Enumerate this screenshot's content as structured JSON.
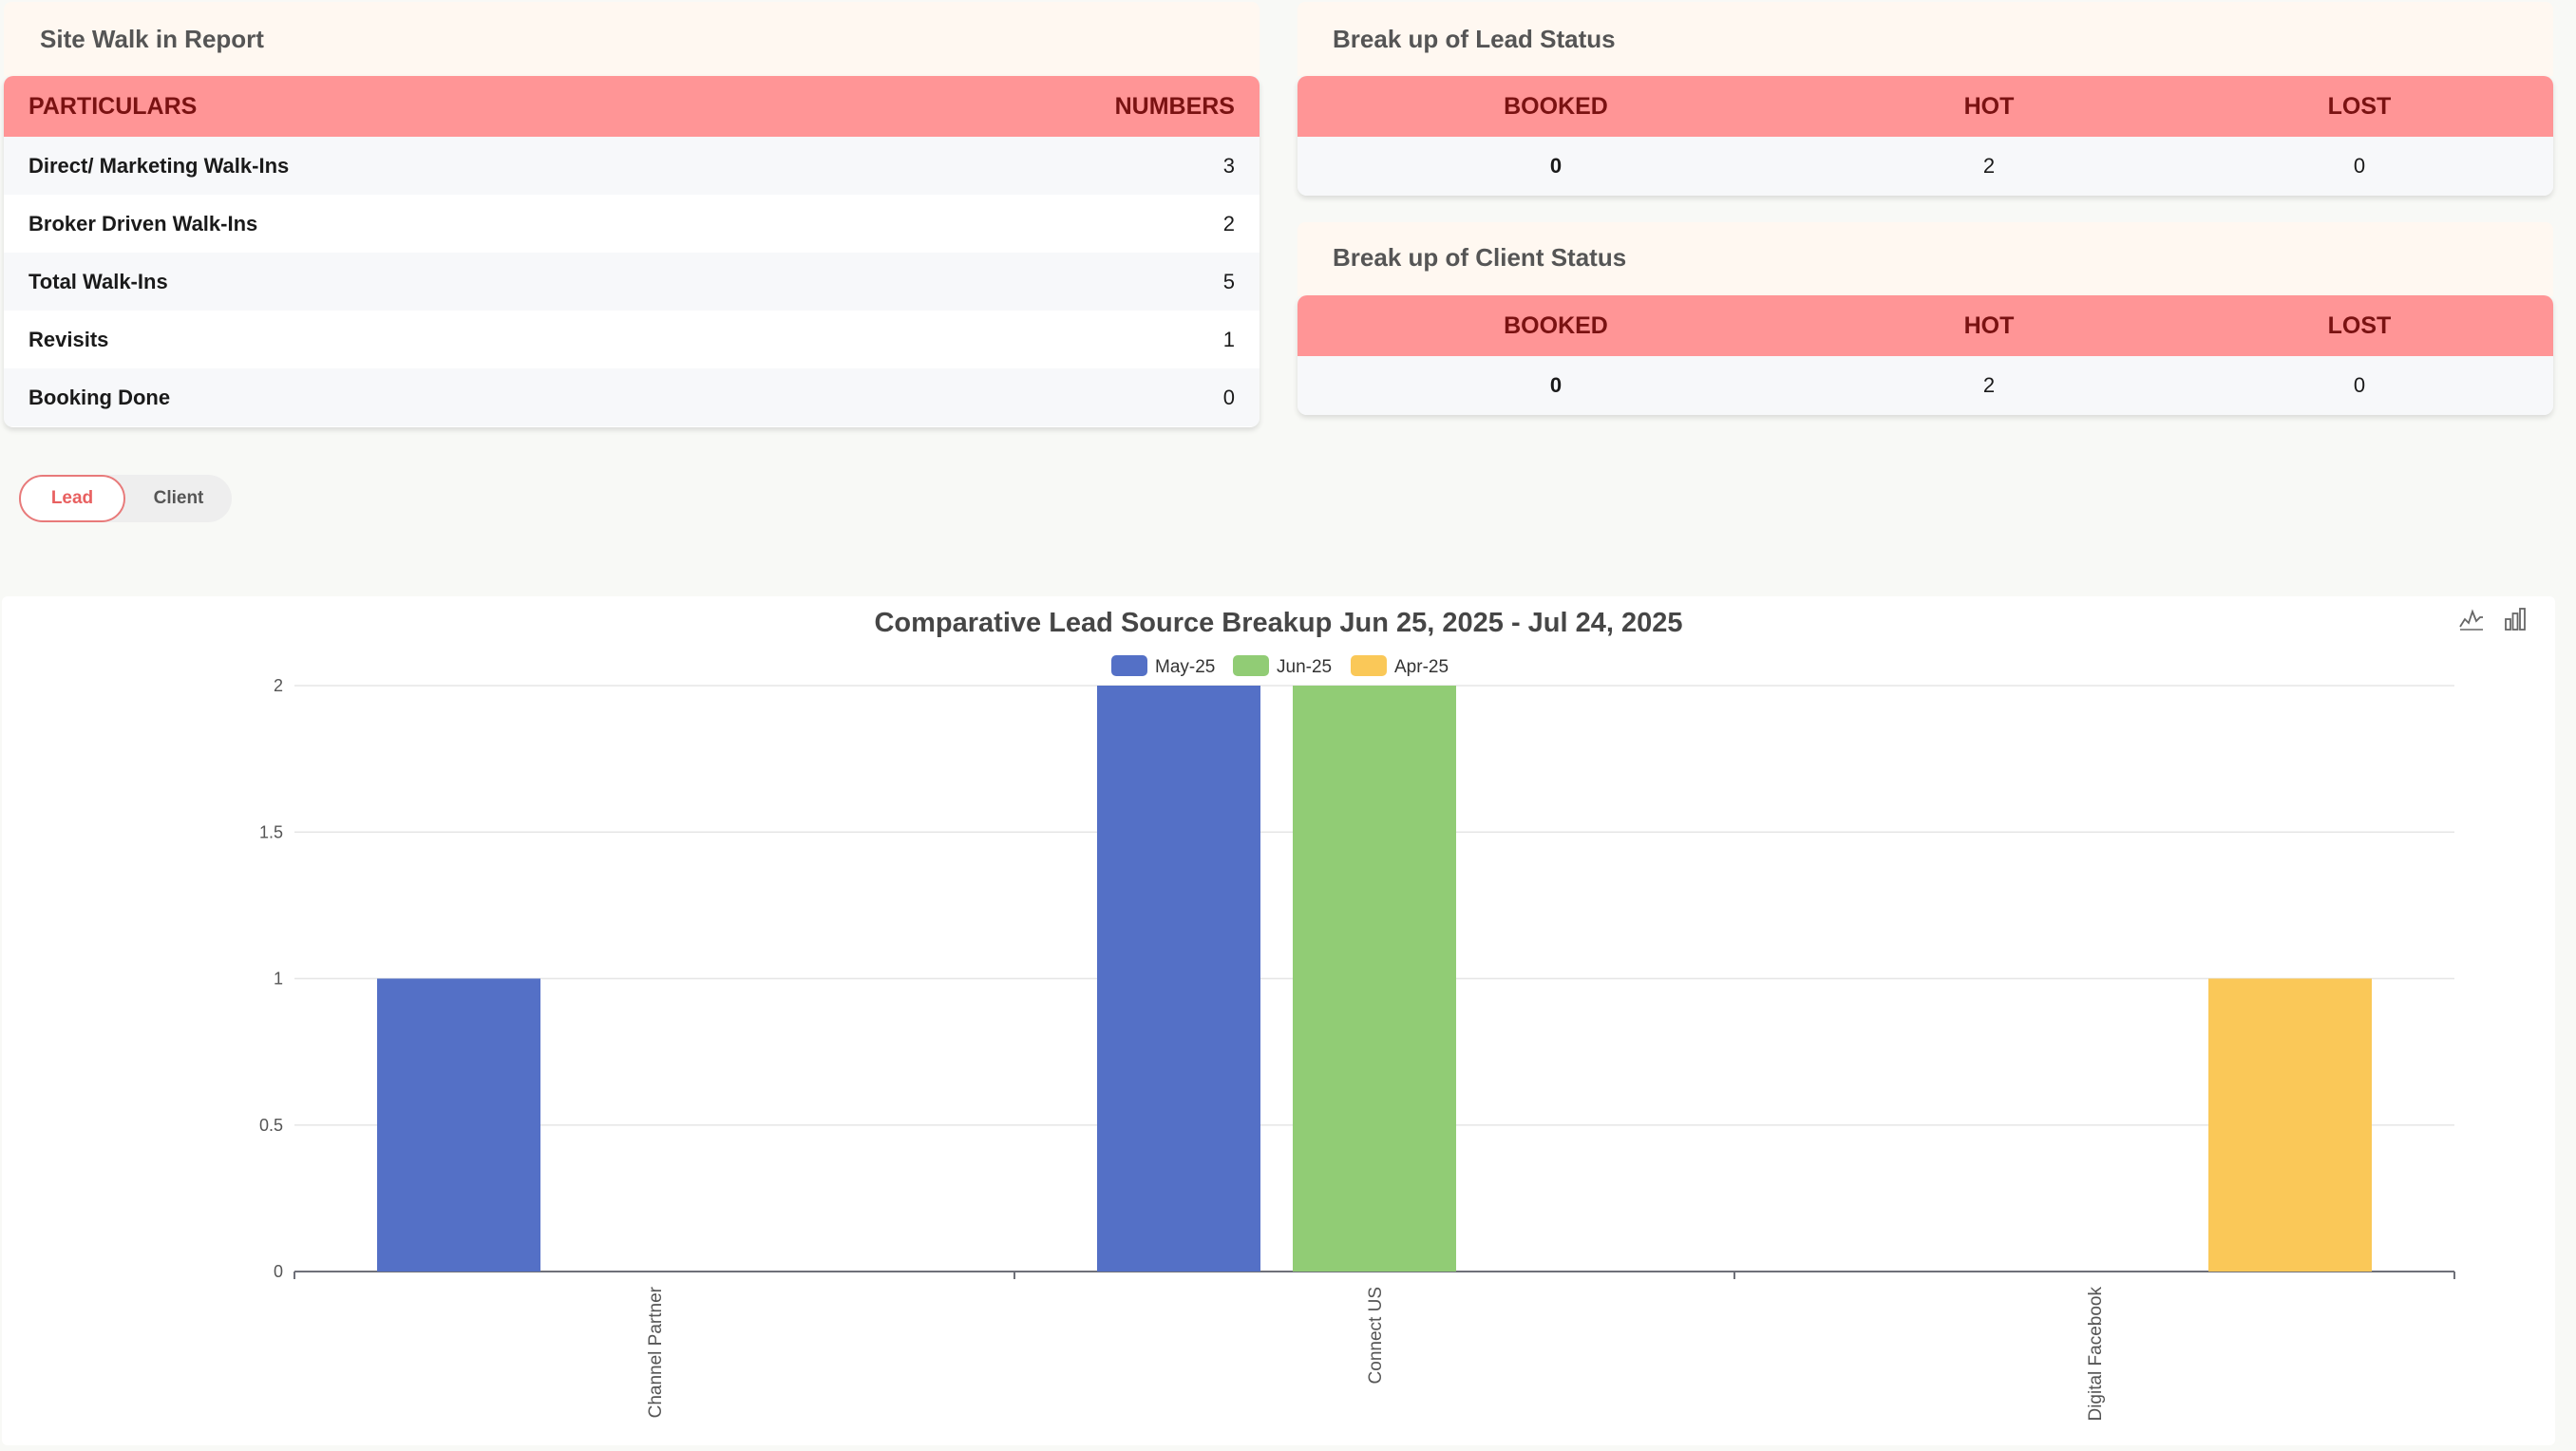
{
  "site_walk": {
    "title": "Site Walk in Report",
    "headers": {
      "particulars": "PARTICULARS",
      "numbers": "NUMBERS"
    },
    "rows": [
      {
        "label": "Direct/ Marketing Walk-Ins",
        "value": "3"
      },
      {
        "label": "Broker Driven Walk-Ins",
        "value": "2"
      },
      {
        "label": "Total Walk-Ins",
        "value": "5"
      },
      {
        "label": "Revisits",
        "value": "1"
      },
      {
        "label": "Booking Done",
        "value": "0"
      }
    ]
  },
  "lead_status": {
    "title": "Break up of Lead Status",
    "headers": {
      "booked": "BOOKED",
      "hot": "HOT",
      "lost": "LOST"
    },
    "values": {
      "booked": "0",
      "hot": "2",
      "lost": "0"
    }
  },
  "client_status": {
    "title": "Break up of Client Status",
    "headers": {
      "booked": "BOOKED",
      "hot": "HOT",
      "lost": "LOST"
    },
    "values": {
      "booked": "0",
      "hot": "2",
      "lost": "0"
    }
  },
  "toggle": {
    "lead": "Lead",
    "client": "Client",
    "selected": "Lead"
  },
  "chart_tools": {
    "line_icon": "line-chart-icon",
    "bar_icon": "bar-chart-icon"
  },
  "chart_data": {
    "type": "bar",
    "title": "Comparative Lead Source Breakup Jun 25, 2025 - Jul 24, 2025",
    "xlabel": "",
    "ylabel": "",
    "categories": [
      "Channel Partner",
      "Connect US",
      "Digital Facebook"
    ],
    "series": [
      {
        "name": "May-25",
        "color": "#5470c6",
        "values": [
          1,
          2,
          0
        ]
      },
      {
        "name": "Jun-25",
        "color": "#91cc75",
        "values": [
          0,
          2,
          0
        ]
      },
      {
        "name": "Apr-25",
        "color": "#fac858",
        "values": [
          0,
          0,
          1
        ]
      }
    ],
    "yticks": [
      "0",
      "0.5",
      "1",
      "1.5",
      "2"
    ],
    "ylim": [
      0,
      2
    ],
    "legend": "top-center",
    "grid": true
  }
}
